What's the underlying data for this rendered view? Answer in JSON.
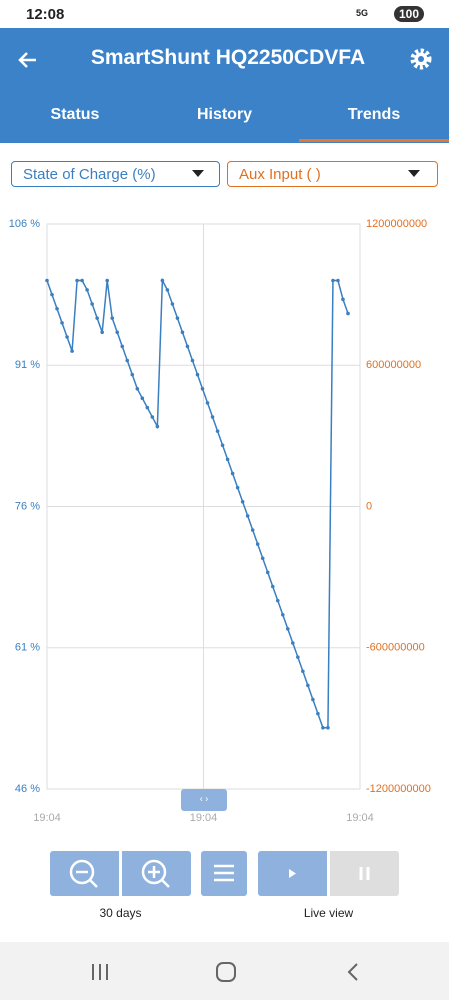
{
  "status_bar": {
    "time": "12:08",
    "network": "5G",
    "battery": "100"
  },
  "header": {
    "title": "SmartShunt HQ2250CDVFA"
  },
  "tabs": [
    "Status",
    "History",
    "Trends"
  ],
  "selectors": {
    "left": "State of Charge (%)",
    "right": "Aux Input ( )"
  },
  "chart_data": {
    "type": "line",
    "x_tick_labels": [
      "19:04",
      "19:04",
      "19:04"
    ],
    "ylim": [
      46,
      106
    ],
    "yticks": [
      {
        "value": 46,
        "label": "46 %"
      },
      {
        "value": 61,
        "label": "61 %"
      },
      {
        "value": 76,
        "label": "76 %"
      },
      {
        "value": 91,
        "label": "91 %"
      },
      {
        "value": 106,
        "label": "106 %"
      }
    ],
    "y2lim": [
      -1200000000,
      1200000000
    ],
    "y2ticks": [
      -1200000000,
      -600000000,
      0,
      600000000,
      1200000000
    ],
    "grid": true,
    "series": [
      {
        "name": "State of Charge (%)",
        "color": "#3a7fc1",
        "values": [
          100,
          98.5,
          97,
          95.5,
          94,
          92.5,
          100,
          100,
          99,
          97.5,
          96,
          94.5,
          100,
          96,
          94.5,
          93,
          91.5,
          90,
          88.5,
          87.5,
          86.5,
          85.5,
          84.5,
          100,
          99,
          97.5,
          96,
          94.5,
          93,
          91.5,
          90,
          88.5,
          87,
          85.5,
          84,
          82.5,
          81,
          79.5,
          78,
          76.5,
          75,
          73.5,
          72,
          70.5,
          69,
          67.5,
          66,
          64.5,
          63,
          61.5,
          60,
          58.5,
          57,
          55.5,
          54,
          52.5,
          52.5,
          100,
          100,
          98,
          96.5
        ]
      }
    ]
  },
  "controls": {
    "zoom_label": "30 days",
    "live_label": "Live view"
  }
}
